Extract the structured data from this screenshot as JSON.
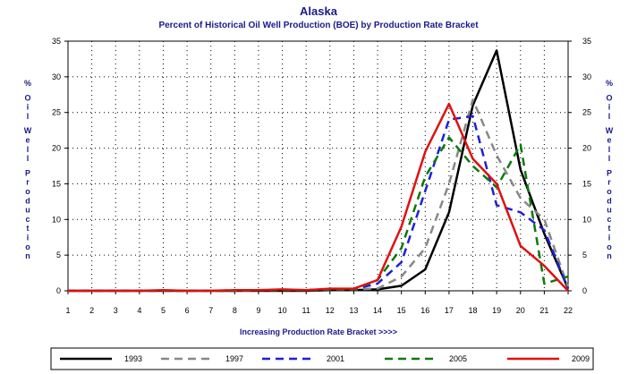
{
  "chart_data": {
    "type": "line",
    "title": "Alaska",
    "subtitle": "Percent of Historical Oil Well Production (BOE) by Production Rate Bracket",
    "xlabel": "Increasing Production Rate Bracket >>>>",
    "ylabel": "% Oil Well Production",
    "ylabel_letters": [
      "%",
      "O",
      "i",
      "l",
      "W",
      "e",
      "l",
      "l",
      "P",
      "r",
      "o",
      "d",
      "u",
      "c",
      "t",
      "i",
      "o",
      "n"
    ],
    "x": [
      1,
      2,
      3,
      4,
      5,
      6,
      7,
      8,
      9,
      10,
      11,
      12,
      13,
      14,
      15,
      16,
      17,
      18,
      19,
      20,
      21,
      22
    ],
    "x_ticks": [
      "1",
      "2",
      "3",
      "4",
      "5",
      "6",
      "7",
      "8",
      "9",
      "10",
      "11",
      "12",
      "13",
      "14",
      "15",
      "16",
      "17",
      "18",
      "19",
      "20",
      "21",
      "22"
    ],
    "y_ticks": [
      "0",
      "5",
      "10",
      "15",
      "20",
      "25",
      "30",
      "35"
    ],
    "xlim": [
      1,
      22
    ],
    "ylim": [
      0,
      35
    ],
    "grid": true,
    "legend_position": "bottom",
    "series": [
      {
        "name": "1993",
        "color": "#000000",
        "dash": "solid",
        "values": [
          0,
          0,
          0,
          0,
          0,
          0,
          0,
          0,
          0,
          0,
          0,
          0.1,
          0.1,
          0.2,
          0.7,
          3,
          11,
          26,
          33.7,
          17,
          8,
          0.3
        ]
      },
      {
        "name": "1997",
        "color": "#888888",
        "dash": "dashed",
        "values": [
          0,
          0,
          0,
          0,
          0,
          0,
          0,
          0,
          0.1,
          0.1,
          0.1,
          0.2,
          0.2,
          0.3,
          2,
          6,
          15,
          26.8,
          19,
          13,
          10,
          0.5
        ]
      },
      {
        "name": "2001",
        "color": "#1f1fd6",
        "dash": "dashed",
        "values": [
          0,
          0,
          0,
          0,
          0,
          0,
          0,
          0,
          0.1,
          0.1,
          0.1,
          0.2,
          0.2,
          1,
          4,
          14,
          24,
          24.5,
          12,
          11,
          8.5,
          0.3
        ]
      },
      {
        "name": "2005",
        "color": "#0a7a0a",
        "dash": "dashed",
        "values": [
          0,
          0,
          0,
          0,
          0,
          0,
          0,
          0,
          0.1,
          0.1,
          0.1,
          0.2,
          0.2,
          1.5,
          6,
          16,
          21.5,
          17.5,
          14.5,
          20.5,
          1,
          2
        ]
      },
      {
        "name": "2009",
        "color": "#e01010",
        "dash": "solid",
        "values": [
          0,
          0,
          0,
          0,
          0.1,
          0,
          0,
          0.1,
          0.1,
          0.2,
          0.1,
          0.3,
          0.3,
          1.5,
          9,
          19.5,
          26.2,
          18.5,
          15,
          6.3,
          3.5,
          0
        ]
      }
    ]
  }
}
